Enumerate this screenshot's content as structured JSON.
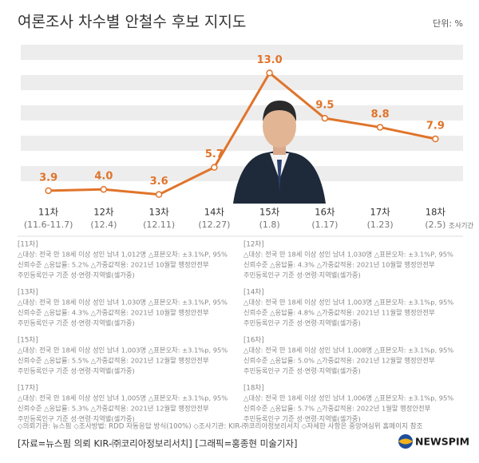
{
  "chart_data": {
    "type": "line",
    "title": "여론조사 차수별 안철수 후보 지지도",
    "unit_label": "단위: %",
    "categories": [
      "11차",
      "12차",
      "13차",
      "14차",
      "15차",
      "16차",
      "17차",
      "18차"
    ],
    "periods": [
      "(11.6-11.7)",
      "(12.4)",
      "(12.11)",
      "(12.27)",
      "(1.8)",
      "(1.17)",
      "(1.23)",
      "(2.5)"
    ],
    "period_label": "조사기간",
    "values": [
      3.9,
      4.0,
      3.6,
      5.7,
      13.0,
      9.5,
      8.8,
      7.9
    ],
    "value_labels": [
      "3.9",
      "4.0",
      "3.6",
      "5.7",
      "13.0",
      "9.5",
      "8.8",
      "7.9"
    ],
    "color": "#e0742a",
    "ylim": [
      0,
      15
    ]
  },
  "notes": [
    {
      "header": "[11차]",
      "lines": [
        "△대상: 전국 만 18세 이상 성인 남녀 1,012명 △표본오차: ±3.1%P, 95%",
        "신뢰수준 △응답률: 5.2% △가중값적용: 2021년 10월말 행정안전부",
        "주민등록인구 기준 성·연령·지역별(셀가중)"
      ]
    },
    {
      "header": "[12차]",
      "lines": [
        "△대상: 전국 만 18세 이상 성인 남녀 1,030명 △표본오차: ±3.1%P, 95%",
        "신뢰수준 △응답률: 4.3% △가중값적용: 2021년 10월말 행정안전부",
        "주민등록인구 기준 성·연령·지역별(셀가중)"
      ]
    },
    {
      "header": "[13차]",
      "lines": [
        "△대상: 전국 만 18세 이상 성인 남녀 1,030명 △표본오차: ±3.1%P, 95%",
        "신뢰수준 △응답률: 4.3% △가중값적용: 2021년 10월말 행정안전부",
        "주민등록인구 기준 성·연령·지역별(셀가중)"
      ]
    },
    {
      "header": "[14차]",
      "lines": [
        "△대상: 전국 만 18세 이상 성인 남녀 1,003명 △표본오차: ±3.1%p, 95%",
        "신뢰수준 △응답률: 4.8% △가중값적용: 2021년 11월말 행정안전부",
        "주민등록인구 기준 성·연령·지역별(셀가중)"
      ]
    },
    {
      "header": "[15차]",
      "lines": [
        "△대상: 전국 만 18세 이상 성인 남녀 1,003명 △표본오차: ±3.1%p, 95%",
        "신뢰수준 △응답률: 5.5% △가중값적용: 2021년 12월말 행정안전부",
        "주민등록인구 기준 성·연령·지역별(셀가중)"
      ]
    },
    {
      "header": "[16차]",
      "lines": [
        "△대상: 전국 만 18세 이상 성인 남녀 1,008명 △표본오차: ±3.1%p, 95%",
        "신뢰수준 △응답률: 5.0% △가중값적용: 2021년 12월말 행정안전부",
        "주민등록인구 기준 성·연령·지역별(셀가중)"
      ]
    },
    {
      "header": "[17차]",
      "lines": [
        "△대상: 전국 만 18세 이상 성인 남녀 1,005명 △표본오차: ±3.1%p, 95%",
        "신뢰수준 △응답률: 5.3% △가중값적용: 2021년 12월말 행정안전부",
        "주민등록인구 기준 성·연령·지역별(셀가중)"
      ]
    },
    {
      "header": "[18차]",
      "lines": [
        "△대상: 전국 만 18세 이상 성인 남녀 1,006명 △표본오차: ±3.1%p, 95%",
        "신뢰수준 △응답률: 5.7% △가중값적용: 2022년 1월말 행정안전부",
        "주민등록인구 기준 성·연령·지역별(셀가중)"
      ]
    }
  ],
  "footer": {
    "methods": "◇의뢰기관: 뉴스핌 ◇조사방법: RDD 자동응답 방식(100%) ◇조사기관: KIR-㈜코리아정보리서치 ◇자세한 사항은 중앙여심위 홈페이지 참조",
    "source": "[자료=뉴스핌 의뢰 KIR-㈜코리아정보리서치] [그래픽=홍종현 미술기자]",
    "logo": "NEWSPIM"
  }
}
